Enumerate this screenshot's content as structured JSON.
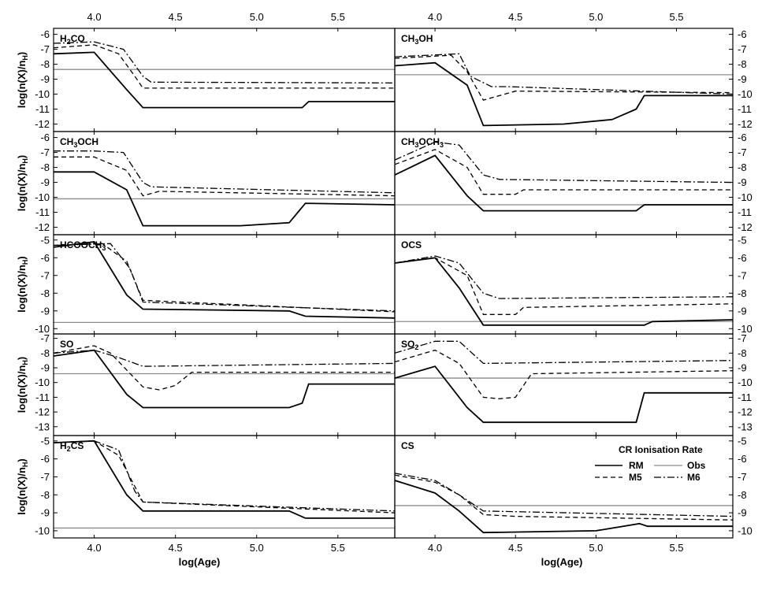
{
  "chart_data": {
    "type": "line",
    "xlabel": "log(Age)",
    "ylabel_base": "log(n(X)/n",
    "ylabel_sub": "H",
    "ylabel_close": ")",
    "xlim": [
      3.75,
      5.85
    ],
    "xticks": [
      4.0,
      4.5,
      5.0,
      5.5
    ],
    "xtick_labels": [
      "4.0",
      "4.5",
      "5.0",
      "5.5"
    ],
    "legend": {
      "title": "CR Ionisation Rate",
      "entries": [
        {
          "name": "RM",
          "style": "solid"
        },
        {
          "name": "Obs",
          "style": "obs"
        },
        {
          "name": "M5",
          "style": "dash"
        },
        {
          "name": "M6",
          "style": "dashdot"
        }
      ]
    },
    "panels": [
      {
        "row": 0,
        "col": 0,
        "label": [
          [
            "H",
            ""
          ],
          [
            "2",
            "sub"
          ],
          [
            "CO",
            ""
          ]
        ],
        "ylim": [
          -12.5,
          -5.6
        ],
        "yticks": [
          -6,
          -7,
          -8,
          -9,
          -10,
          -11,
          -12
        ],
        "obs": -8.35,
        "series": {
          "RM": {
            "x": [
              3.75,
              4.0,
              4.2,
              4.3,
              5.0,
              5.28,
              5.32,
              5.85
            ],
            "y": [
              -7.3,
              -7.2,
              -9.7,
              -10.9,
              -10.9,
              -10.9,
              -10.5,
              -10.5
            ]
          },
          "M5": {
            "x": [
              3.75,
              4.0,
              4.15,
              4.25,
              4.3,
              5.85
            ],
            "y": [
              -6.9,
              -6.7,
              -7.3,
              -8.8,
              -9.6,
              -9.6
            ]
          },
          "M6": {
            "x": [
              3.75,
              4.0,
              4.18,
              4.3,
              4.35,
              5.85
            ],
            "y": [
              -6.6,
              -6.5,
              -7.0,
              -8.8,
              -9.2,
              -9.25
            ]
          }
        }
      },
      {
        "row": 0,
        "col": 1,
        "label": [
          [
            "CH",
            ""
          ],
          [
            "3",
            "sub"
          ],
          [
            "OH",
            ""
          ]
        ],
        "ylim": [
          -12.5,
          -5.6
        ],
        "yticks": [
          -6,
          -7,
          -8,
          -9,
          -10,
          -11,
          -12
        ],
        "obs": -8.7,
        "series": {
          "RM": {
            "x": [
              3.75,
              4.0,
              4.2,
              4.3,
              4.8,
              5.1,
              5.25,
              5.3,
              5.85
            ],
            "y": [
              -8.1,
              -7.9,
              -9.4,
              -12.1,
              -12.0,
              -11.7,
              -11.0,
              -10.1,
              -10.1
            ]
          },
          "M5": {
            "x": [
              3.75,
              4.1,
              4.2,
              4.3,
              4.5,
              5.85
            ],
            "y": [
              -7.6,
              -7.4,
              -8.5,
              -10.4,
              -9.8,
              -9.9
            ]
          },
          "M6": {
            "x": [
              3.75,
              4.15,
              4.22,
              4.35,
              4.45,
              5.85
            ],
            "y": [
              -7.5,
              -7.3,
              -8.8,
              -9.5,
              -9.5,
              -10.0
            ]
          }
        }
      },
      {
        "row": 1,
        "col": 0,
        "label": [
          [
            "CH",
            ""
          ],
          [
            "3",
            "sub"
          ],
          [
            "OCH",
            ""
          ]
        ],
        "ylim": [
          -12.5,
          -5.6
        ],
        "yticks": [
          -6,
          -7,
          -8,
          -9,
          -10,
          -11,
          -12
        ],
        "obs": -10.1,
        "series": {
          "RM": {
            "x": [
              3.75,
              4.0,
              4.2,
              4.3,
              4.9,
              5.2,
              5.3,
              5.85
            ],
            "y": [
              -8.3,
              -8.3,
              -9.5,
              -11.9,
              -11.9,
              -11.7,
              -10.4,
              -10.5
            ]
          },
          "M5": {
            "x": [
              3.75,
              4.0,
              4.2,
              4.3,
              4.4,
              5.85
            ],
            "y": [
              -7.3,
              -7.3,
              -8.2,
              -9.9,
              -9.6,
              -9.9
            ]
          },
          "M6": {
            "x": [
              3.75,
              4.0,
              4.18,
              4.3,
              4.35,
              5.85
            ],
            "y": [
              -6.9,
              -6.9,
              -7.0,
              -9.0,
              -9.3,
              -9.7
            ]
          }
        }
      },
      {
        "row": 1,
        "col": 1,
        "label": [
          [
            "CH",
            ""
          ],
          [
            "3",
            "sub"
          ],
          [
            "OCH",
            ""
          ],
          [
            "3",
            "sub"
          ]
        ],
        "ylim": [
          -12.5,
          -5.6
        ],
        "yticks": [
          -6,
          -7,
          -8,
          -9,
          -10,
          -11,
          -12
        ],
        "obs": -10.5,
        "series": {
          "RM": {
            "x": [
              3.75,
              4.0,
              4.2,
              4.3,
              5.25,
              5.3,
              5.85
            ],
            "y": [
              -8.5,
              -7.2,
              -9.9,
              -10.9,
              -10.9,
              -10.5,
              -10.5
            ]
          },
          "M5": {
            "x": [
              3.75,
              4.0,
              4.2,
              4.3,
              4.5,
              4.55,
              5.85
            ],
            "y": [
              -7.8,
              -6.8,
              -8.0,
              -9.8,
              -9.8,
              -9.5,
              -9.5
            ]
          },
          "M6": {
            "x": [
              3.75,
              4.0,
              4.15,
              4.3,
              4.4,
              5.85
            ],
            "y": [
              -7.5,
              -6.3,
              -6.5,
              -8.5,
              -8.8,
              -9.0
            ]
          }
        }
      },
      {
        "row": 2,
        "col": 0,
        "label": [
          [
            "HCOOCH",
            ""
          ],
          [
            "3",
            "sub"
          ]
        ],
        "ylim": [
          -10.3,
          -4.7
        ],
        "yticks": [
          -5,
          -6,
          -7,
          -8,
          -9,
          -10
        ],
        "obs": -9.65,
        "series": {
          "RM": {
            "x": [
              3.75,
              4.0,
              4.2,
              4.3,
              5.2,
              5.3,
              5.85
            ],
            "y": [
              -5.4,
              -5.1,
              -8.1,
              -8.9,
              -9.0,
              -9.3,
              -9.4
            ]
          },
          "M5": {
            "x": [
              3.75,
              4.05,
              4.2,
              4.3,
              5.85
            ],
            "y": [
              -5.3,
              -5.2,
              -6.2,
              -8.4,
              -9.05
            ]
          },
          "M6": {
            "x": [
              3.75,
              4.1,
              4.22,
              4.3,
              5.85
            ],
            "y": [
              -5.3,
              -5.2,
              -6.6,
              -8.5,
              -9.0
            ]
          }
        }
      },
      {
        "row": 2,
        "col": 1,
        "label": [
          [
            "OCS",
            ""
          ]
        ],
        "ylim": [
          -10.3,
          -4.7
        ],
        "yticks": [
          -5,
          -6,
          -7,
          -8,
          -9,
          -10
        ],
        "obs": -9.6,
        "series": {
          "RM": {
            "x": [
              3.75,
              4.0,
              4.15,
              4.3,
              5.3,
              5.35,
              5.85
            ],
            "y": [
              -6.3,
              -6.0,
              -7.7,
              -9.8,
              -9.8,
              -9.6,
              -9.5
            ]
          },
          "M5": {
            "x": [
              3.75,
              4.0,
              4.2,
              4.3,
              4.5,
              4.55,
              5.85
            ],
            "y": [
              -6.3,
              -6.0,
              -7.0,
              -9.2,
              -9.2,
              -8.8,
              -8.6
            ]
          },
          "M6": {
            "x": [
              3.75,
              4.0,
              4.15,
              4.3,
              4.4,
              5.85
            ],
            "y": [
              -6.3,
              -5.9,
              -6.3,
              -8.0,
              -8.3,
              -8.2
            ]
          }
        }
      },
      {
        "row": 3,
        "col": 0,
        "label": [
          [
            "SO",
            ""
          ]
        ],
        "ylim": [
          -13.6,
          -6.7
        ],
        "yticks": [
          -7,
          -8,
          -9,
          -10,
          -11,
          -12,
          -13
        ],
        "obs": -9.4,
        "series": {
          "RM": {
            "x": [
              3.75,
              4.0,
              4.2,
              4.3,
              5.2,
              5.28,
              5.32,
              5.85
            ],
            "y": [
              -8.2,
              -7.8,
              -10.8,
              -11.7,
              -11.7,
              -11.4,
              -10.1,
              -10.1
            ]
          },
          "M5": {
            "x": [
              3.75,
              4.0,
              4.1,
              4.3,
              4.4,
              4.5,
              4.6,
              5.85
            ],
            "y": [
              -8.0,
              -7.5,
              -8.0,
              -10.3,
              -10.5,
              -10.2,
              -9.3,
              -9.3
            ]
          },
          "M6": {
            "x": [
              3.75,
              4.0,
              4.15,
              4.3,
              5.85
            ],
            "y": [
              -8.0,
              -7.8,
              -8.3,
              -8.9,
              -8.7
            ]
          }
        }
      },
      {
        "row": 3,
        "col": 1,
        "label": [
          [
            "SO",
            ""
          ],
          [
            "2",
            "sub"
          ]
        ],
        "ylim": [
          -13.6,
          -6.7
        ],
        "yticks": [
          -7,
          -8,
          -9,
          -10,
          -11,
          -12,
          -13
        ],
        "obs": -9.7,
        "series": {
          "RM": {
            "x": [
              3.75,
              4.0,
              4.2,
              4.3,
              5.25,
              5.3,
              5.85
            ],
            "y": [
              -9.7,
              -8.9,
              -11.7,
              -12.7,
              -12.7,
              -10.7,
              -10.7
            ]
          },
          "M5": {
            "x": [
              3.75,
              4.0,
              4.15,
              4.3,
              4.4,
              4.5,
              4.6,
              5.85
            ],
            "y": [
              -8.6,
              -7.8,
              -8.7,
              -11.0,
              -11.1,
              -11.0,
              -9.4,
              -9.2
            ]
          },
          "M6": {
            "x": [
              3.75,
              4.0,
              4.15,
              4.3,
              5.85
            ],
            "y": [
              -8.0,
              -7.2,
              -7.2,
              -8.7,
              -8.5
            ]
          }
        }
      },
      {
        "row": 4,
        "col": 0,
        "label": [
          [
            "H",
            ""
          ],
          [
            "2",
            "sub"
          ],
          [
            "CS",
            ""
          ]
        ],
        "ylim": [
          -10.4,
          -4.7
        ],
        "yticks": [
          -5,
          -6,
          -7,
          -8,
          -9,
          -10
        ],
        "obs": -9.85,
        "series": {
          "RM": {
            "x": [
              3.75,
              4.0,
              4.2,
              4.3,
              5.2,
              5.3,
              5.85
            ],
            "y": [
              -5.1,
              -5.0,
              -8.0,
              -8.9,
              -8.9,
              -9.3,
              -9.3
            ]
          },
          "M5": {
            "x": [
              3.75,
              4.0,
              4.15,
              4.3,
              5.85
            ],
            "y": [
              -5.1,
              -5.0,
              -5.8,
              -8.4,
              -9.0
            ]
          },
          "M6": {
            "x": [
              3.75,
              4.0,
              4.15,
              4.25,
              4.3,
              5.85
            ],
            "y": [
              -5.1,
              -5.0,
              -5.5,
              -7.8,
              -8.4,
              -8.9
            ]
          }
        }
      },
      {
        "row": 4,
        "col": 1,
        "label": [
          [
            "CS",
            ""
          ]
        ],
        "ylim": [
          -10.4,
          -4.7
        ],
        "yticks": [
          -5,
          -6,
          -7,
          -8,
          -9,
          -10
        ],
        "obs": -8.6,
        "series": {
          "RM": {
            "x": [
              3.75,
              4.0,
              4.15,
              4.3,
              5.0,
              5.27,
              5.32,
              5.85
            ],
            "y": [
              -7.2,
              -7.9,
              -8.9,
              -10.1,
              -10.0,
              -9.6,
              -9.75,
              -9.75
            ]
          },
          "M5": {
            "x": [
              3.75,
              4.0,
              4.15,
              4.3,
              4.5,
              5.85
            ],
            "y": [
              -6.9,
              -7.3,
              -8.0,
              -9.1,
              -9.2,
              -9.4
            ]
          },
          "M6": {
            "x": [
              3.75,
              4.0,
              4.15,
              4.3,
              5.85
            ],
            "y": [
              -6.8,
              -7.2,
              -8.0,
              -8.9,
              -9.2
            ]
          }
        }
      }
    ]
  }
}
